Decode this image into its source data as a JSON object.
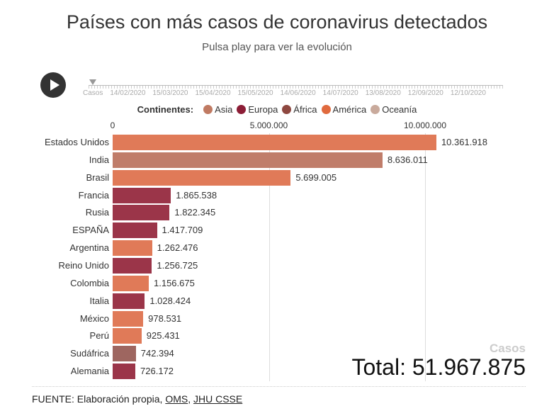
{
  "title": "Países con más casos de coronavirus detectados",
  "subtitle": "Pulsa play para ver la evolución",
  "timeline": {
    "labels": [
      "Casos",
      "14/02/2020",
      "15/03/2020",
      "15/04/2020",
      "15/05/2020",
      "14/06/2020",
      "14/07/2020",
      "13/08/2020",
      "12/09/2020",
      "12/10/2020"
    ]
  },
  "legend": {
    "title": "Continentes:",
    "items": [
      {
        "label": "Asia",
        "color": "#c07a62"
      },
      {
        "label": "Europa",
        "color": "#8c1d36"
      },
      {
        "label": "África",
        "color": "#8e4840"
      },
      {
        "label": "América",
        "color": "#e06a3e"
      },
      {
        "label": "Oceanía",
        "color": "#c9aa9c"
      }
    ]
  },
  "chart_data": {
    "type": "bar",
    "orientation": "horizontal",
    "xlim": [
      0,
      10500000
    ],
    "x_ticks": [
      {
        "v": 0,
        "label": "0"
      },
      {
        "v": 5000000,
        "label": "5.000.000"
      },
      {
        "v": 10000000,
        "label": "10.000.000"
      }
    ],
    "categories": [
      "Estados Unidos",
      "India",
      "Brasil",
      "Francia",
      "Rusia",
      "ESPAÑA",
      "Argentina",
      "Reino Unido",
      "Colombia",
      "Italia",
      "México",
      "Perú",
      "Sudáfrica",
      "Alemania"
    ],
    "values": [
      10361918,
      8636011,
      5699005,
      1865538,
      1822345,
      1417709,
      1262476,
      1256725,
      1156675,
      1028424,
      978531,
      925431,
      742394,
      726172
    ],
    "value_labels": [
      "10.361.918",
      "8.636.011",
      "5.699.005",
      "1.865.538",
      "1.822.345",
      "1.417.709",
      "1.262.476",
      "1.256.725",
      "1.156.675",
      "1.028.424",
      "978.531",
      "925.431",
      "742.394",
      "726.172"
    ],
    "continents": [
      "América",
      "Asia",
      "América",
      "Europa",
      "Europa",
      "Europa",
      "América",
      "Europa",
      "América",
      "Europa",
      "América",
      "América",
      "África",
      "Europa"
    ],
    "bar_colors": {
      "América": "#e07a58",
      "Asia": "#c07d6a",
      "Europa": "#9b3549",
      "África": "#9e6660"
    }
  },
  "casos_label": "Casos",
  "total": "Total: 51.967.875",
  "source": {
    "prefix": "FUENTE: Elaboración propia, ",
    "link1": "OMS",
    "sep": ", ",
    "link2": "JHU CSSE"
  }
}
